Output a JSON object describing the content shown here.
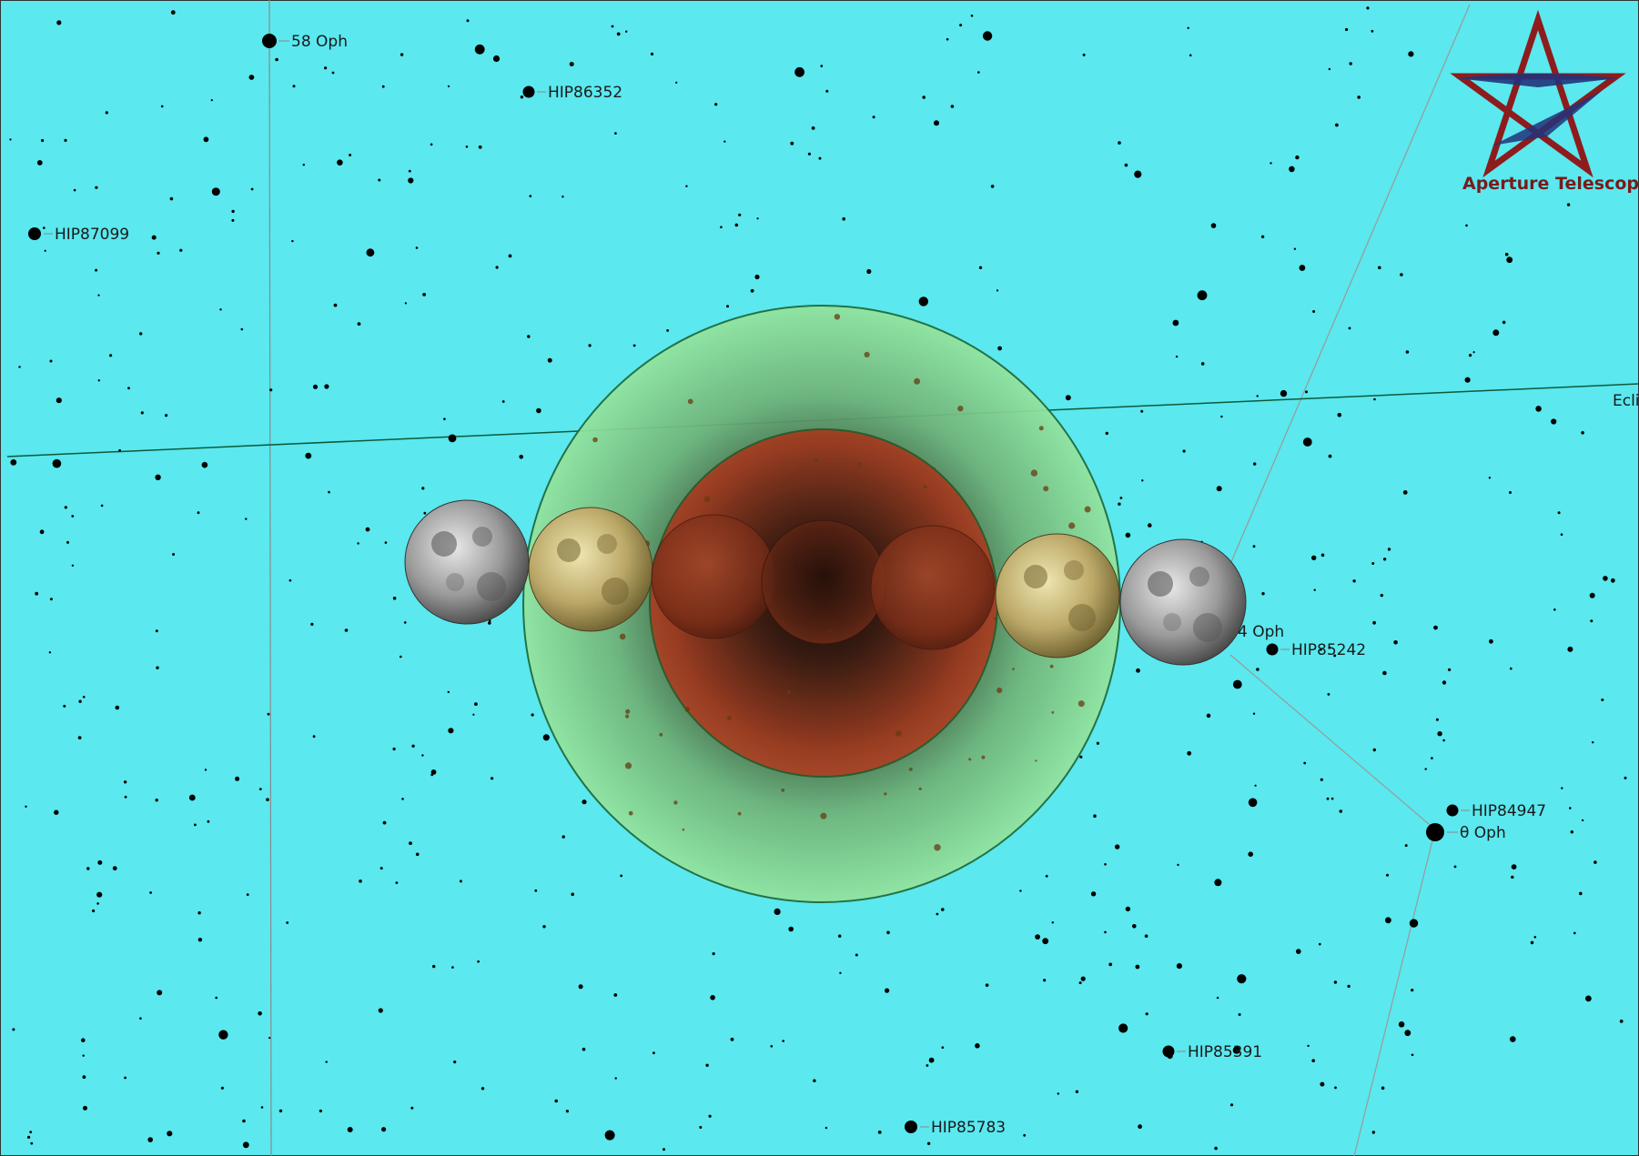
{
  "logo": {
    "text": "Aperture Telescopes",
    "colors": {
      "red": "#8e1c1c",
      "blue": "#22337a"
    }
  },
  "chart_data": {
    "type": "scatter",
    "title": "",
    "colors": {
      "background": "#5be8ef",
      "penumbra": "#8fe09a",
      "umbra": "#9a3a20",
      "star": "#000000",
      "grid": "#8a8a8a",
      "ecliptic": "#0d5a3a"
    },
    "ecliptic_label": "Ecli",
    "labeled_stars": [
      {
        "name": "58 Oph"
      },
      {
        "name": "HIP86352"
      },
      {
        "name": "HIP87099"
      },
      {
        "name": "4 Oph"
      },
      {
        "name": "HIP85242"
      },
      {
        "name": "HIP84947"
      },
      {
        "name": "θ Oph"
      },
      {
        "name": "HIP85391"
      },
      {
        "name": "HIP85783"
      }
    ],
    "moon_sequence": [
      {
        "phase": "partial-penumbral"
      },
      {
        "phase": "penumbral"
      },
      {
        "phase": "partial-umbral"
      },
      {
        "phase": "total"
      },
      {
        "phase": "partial-umbral"
      },
      {
        "phase": "penumbral"
      },
      {
        "phase": "partial-penumbral"
      }
    ]
  }
}
